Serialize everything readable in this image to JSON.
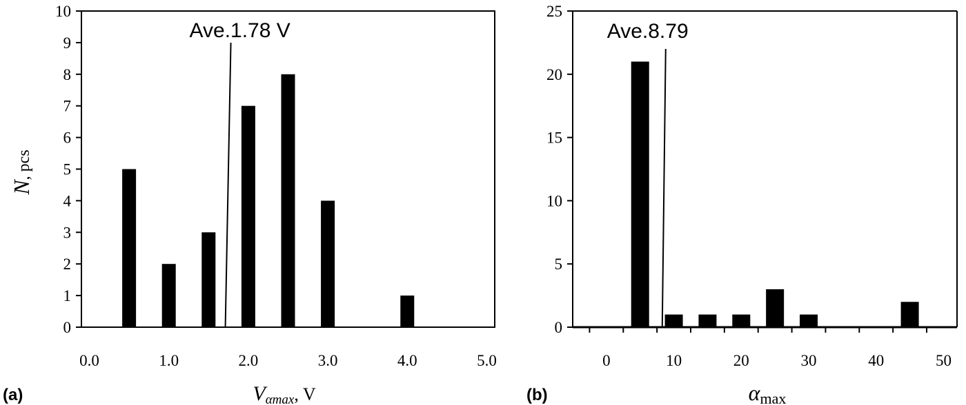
{
  "chart_data": [
    {
      "type": "bar",
      "panel_label": "(a)",
      "bar_centers": [
        0.5,
        1.0,
        1.5,
        2.0,
        2.5,
        3.0,
        4.0
      ],
      "values": [
        5,
        2,
        3,
        7,
        8,
        4,
        1
      ],
      "x_ticks": [
        "0.0",
        "1.0",
        "2.0",
        "3.0",
        "4.0",
        "5.0"
      ],
      "y_ticks": [
        "0",
        "1",
        "2",
        "3",
        "4",
        "5",
        "6",
        "7",
        "8",
        "9",
        "10"
      ],
      "xlim": [
        -0.1,
        5.1
      ],
      "ylim": [
        0,
        10
      ],
      "xlabel": {
        "var": "V",
        "sub": "αmax",
        "unit": ", V"
      },
      "ylabel": {
        "var": "N",
        "unit": ", pcs"
      },
      "average": {
        "value": 1.78,
        "label": "Ave.1.78 V"
      },
      "grid": false,
      "bar_color": "#000000"
    },
    {
      "type": "bar",
      "panel_label": "(b)",
      "bar_centers": [
        5,
        10,
        15,
        20,
        25,
        30,
        45
      ],
      "values": [
        21,
        1,
        1,
        1,
        3,
        1,
        2
      ],
      "x_ticks": [
        "0",
        "10",
        "20",
        "30",
        "40",
        "50"
      ],
      "y_ticks": [
        "0",
        "5",
        "10",
        "15",
        "20",
        "25"
      ],
      "xlim": [
        -5,
        52
      ],
      "ylim": [
        0,
        25
      ],
      "xlabel": {
        "var": "α",
        "sub": "max",
        "unit": ""
      },
      "average": {
        "value": 8.79,
        "label": "Ave.8.79"
      },
      "grid": false,
      "bar_color": "#000000"
    }
  ]
}
